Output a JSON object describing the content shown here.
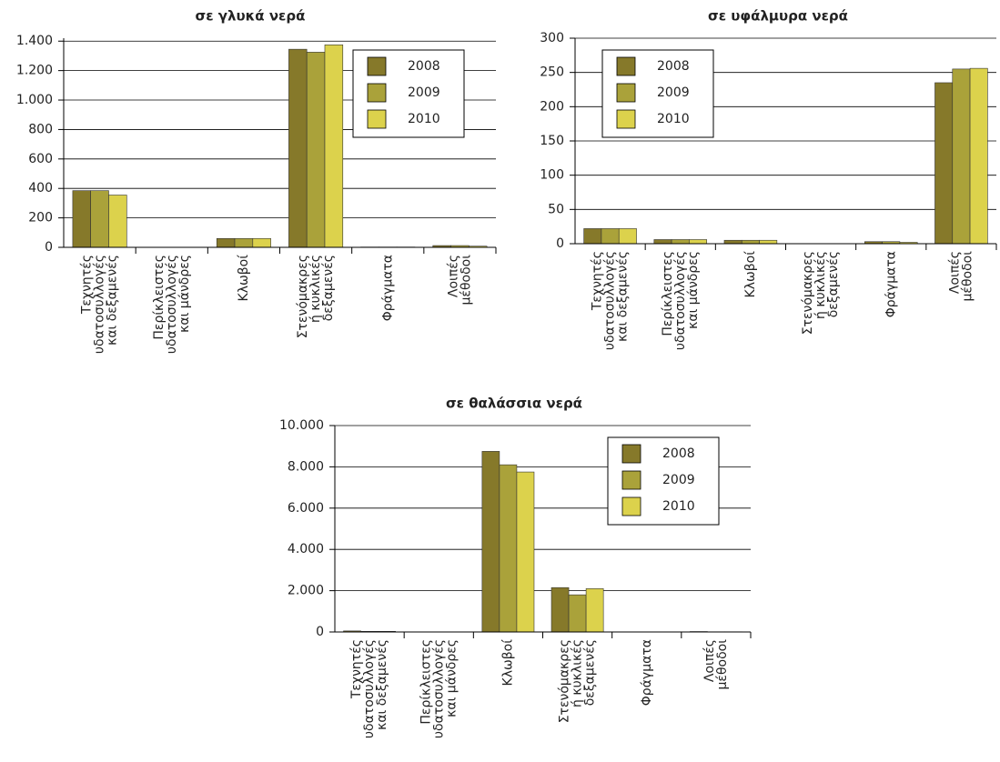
{
  "chart_data": [
    {
      "type": "bar",
      "title": "σε γλυκά νερά",
      "categories": [
        [
          "Τεχνητές",
          "υδατοσυλλογές",
          "και δεξαμενές"
        ],
        [
          "Περίκλειστες",
          "υδατοσυλλογές",
          "και μάνδρες"
        ],
        [
          "Κλωβοί"
        ],
        [
          "Στενόμακρες",
          "ή κυκλικές",
          "δεξαμενές"
        ],
        [
          "Φράγματα"
        ],
        [
          "Λοιπές",
          "μέθοδοι"
        ]
      ],
      "series": [
        {
          "name": "2008",
          "color": "#86792a",
          "values": [
            385,
            0,
            60,
            1345,
            2,
            12
          ]
        },
        {
          "name": "2009",
          "color": "#aaa23a",
          "values": [
            385,
            0,
            60,
            1325,
            2,
            12
          ]
        },
        {
          "name": "2010",
          "color": "#dcd24c",
          "values": [
            355,
            0,
            60,
            1375,
            2,
            8
          ]
        }
      ],
      "ylim": [
        0,
        1420
      ],
      "yticks": [
        0,
        200,
        400,
        600,
        800,
        {
          "value": 1000,
          "label": "1.000"
        },
        {
          "value": 1200,
          "label": "1.200"
        },
        {
          "value": 1400,
          "label": "1.400"
        }
      ],
      "grid": true,
      "legend_position": "upper right"
    },
    {
      "type": "bar",
      "title": "σε υφάλμυρα νερά",
      "categories": [
        [
          "Τεχνητές",
          "υδατοσυλλογές",
          "και δεξαμενές"
        ],
        [
          "Περίκλειστες",
          "υδατοσυλλογές",
          "και μάνδρες"
        ],
        [
          "Κλωβοί"
        ],
        [
          "Στενόμακρες",
          "ή κυκλικές",
          "δεξαμενές"
        ],
        [
          "Φράγματα"
        ],
        [
          "Λοιπές",
          "μέθοδοι"
        ]
      ],
      "series": [
        {
          "name": "2008",
          "color": "#86792a",
          "values": [
            22,
            6,
            5,
            0,
            3,
            235
          ]
        },
        {
          "name": "2009",
          "color": "#aaa23a",
          "values": [
            22,
            6,
            5,
            0,
            3,
            255
          ]
        },
        {
          "name": "2010",
          "color": "#dcd24c",
          "values": [
            22,
            6,
            5,
            0,
            2,
            256
          ]
        }
      ],
      "ylim": [
        0,
        300
      ],
      "yticks": [
        0,
        50,
        100,
        150,
        200,
        250,
        300
      ],
      "grid": true,
      "legend_position": "upper left"
    },
    {
      "type": "bar",
      "title": "σε θαλάσσια νερά",
      "categories": [
        [
          "Τεχνητές",
          "υδατοσυλλογές",
          "και δεξαμενές"
        ],
        [
          "Περίκλειστες",
          "υδατοσυλλογές",
          "και μάνδρες"
        ],
        [
          "Κλωβοί"
        ],
        [
          "Στενόμακρες",
          "ή κυκλικές",
          "δεξαμενές"
        ],
        [
          "Φράγματα"
        ],
        [
          "Λοιπές",
          "μέθοδοι"
        ]
      ],
      "series": [
        {
          "name": "2008",
          "color": "#86792a",
          "values": [
            50,
            0,
            8750,
            2150,
            5,
            20
          ]
        },
        {
          "name": "2009",
          "color": "#aaa23a",
          "values": [
            30,
            0,
            8100,
            1800,
            5,
            10
          ]
        },
        {
          "name": "2010",
          "color": "#dcd24c",
          "values": [
            30,
            0,
            7750,
            2100,
            5,
            10
          ]
        }
      ],
      "ylim": [
        0,
        10000
      ],
      "yticks": [
        0,
        {
          "value": 2000,
          "label": "2.000"
        },
        {
          "value": 4000,
          "label": "4.000"
        },
        {
          "value": 6000,
          "label": "6.000"
        },
        {
          "value": 8000,
          "label": "8.000"
        },
        {
          "value": 10000,
          "label": "10.000"
        }
      ],
      "grid": true,
      "legend_position": "upper right"
    }
  ]
}
